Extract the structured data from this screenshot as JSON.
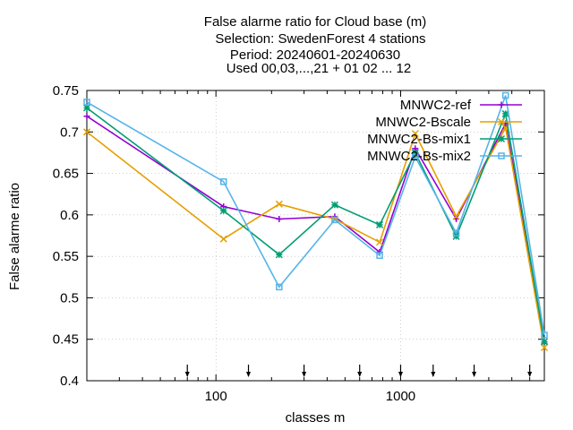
{
  "chart_data": {
    "type": "line",
    "title_lines": [
      "False alarme ratio  for Cloud base (m)",
      "Selection: SwedenForest      4 stations",
      "Period: 20240601-20240630",
      "Used 00,03,...,21 + 01 02 ... 12"
    ],
    "xlabel": "classes m",
    "ylabel": "False alarme ratio",
    "xscale": "log",
    "xlim": [
      20,
      6000
    ],
    "ylim": [
      0.4,
      0.75
    ],
    "yticks": [
      "0.4",
      "0.45",
      "0.5",
      "0.55",
      "0.6",
      "0.65",
      "0.7",
      "0.75"
    ],
    "xticks": [
      "100",
      "1000"
    ],
    "grid": true,
    "legend_position": "top-right",
    "arrow_markers_x": [
      70,
      150,
      300,
      600,
      1000,
      1500,
      2500,
      5000
    ],
    "x": [
      20,
      110,
      220,
      440,
      770,
      1200,
      2000,
      3700,
      6000
    ],
    "series": [
      {
        "name": "MNWC2-ref",
        "color": "#9400d3",
        "marker": "plus",
        "values": [
          0.719,
          0.61,
          0.595,
          0.598,
          0.555,
          0.68,
          0.595,
          0.71,
          0.445
        ]
      },
      {
        "name": "MNWC2-Bscale",
        "color": "#e69f00",
        "marker": "cross",
        "values": [
          0.7,
          0.571,
          0.613,
          0.595,
          0.567,
          0.698,
          0.598,
          0.705,
          0.44
        ]
      },
      {
        "name": "MNWC2-Bs-mix1",
        "color": "#009e73",
        "marker": "star",
        "values": [
          0.729,
          0.605,
          0.552,
          0.612,
          0.588,
          0.675,
          0.574,
          0.722,
          0.447
        ]
      },
      {
        "name": "MNWC2-Bs-mix2",
        "color": "#56b4e9",
        "marker": "box",
        "values": [
          0.736,
          0.64,
          0.513,
          0.594,
          0.551,
          0.67,
          0.578,
          0.744,
          0.455
        ]
      }
    ]
  }
}
